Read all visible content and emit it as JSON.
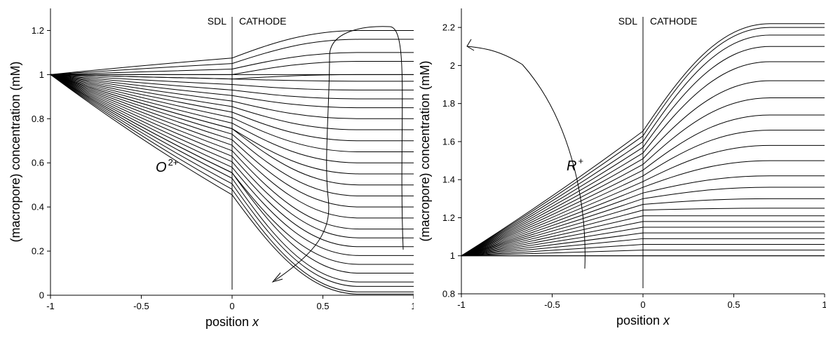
{
  "chart_data": [
    {
      "type": "line",
      "species": {
        "base": "O",
        "sup": "2+"
      },
      "xlabel": {
        "text": "position ",
        "var": "x"
      },
      "ylabel": "(macropore) concentration (mM)",
      "xlim": [
        -1,
        1
      ],
      "ylim": [
        0,
        1.3
      ],
      "xticks": [
        -1,
        -0.5,
        0,
        0.5,
        1
      ],
      "xtick_labels": [
        "-1",
        "-0.5",
        "0",
        "0.5",
        "1"
      ],
      "yticks": [
        0,
        0.2,
        0.4,
        0.6,
        0.8,
        1,
        1.2
      ],
      "ytick_labels": [
        "0",
        "0.2",
        "0.4",
        "0.6",
        "0.8",
        "1",
        "1.2"
      ],
      "regions": {
        "left": "SDL",
        "right": "CATHODE",
        "boundary": 0
      },
      "grid": false,
      "curves": {
        "interface_values": [
          1.075,
          1.05,
          1.025,
          1.0,
          0.98,
          0.955,
          0.93,
          0.905,
          0.88,
          0.855,
          0.83,
          0.805,
          0.78,
          0.755,
          0.73,
          0.705,
          0.68,
          0.655,
          0.63,
          0.605,
          0.58,
          0.555,
          0.53,
          0.505,
          0.48,
          0.455
        ],
        "end_values": [
          1.2,
          1.16,
          1.1,
          1.06,
          1.0,
          0.97,
          0.93,
          0.89,
          0.85,
          0.8,
          0.75,
          0.7,
          0.65,
          0.6,
          0.55,
          0.5,
          0.45,
          0.4,
          0.35,
          0.3,
          0.26,
          0.22,
          0.18,
          0.14,
          0.1,
          0.06,
          0.04,
          0.015,
          0.005
        ]
      },
      "arrow_direction": "down"
    },
    {
      "type": "line",
      "species": {
        "base": "R",
        "sup": "+"
      },
      "xlabel": {
        "text": "position ",
        "var": "x"
      },
      "ylabel": "(macropore) concentration (mM)",
      "xlim": [
        -1,
        1
      ],
      "ylim": [
        0.8,
        2.3
      ],
      "xticks": [
        -1,
        -0.5,
        0,
        0.5,
        1
      ],
      "xtick_labels": [
        "-1",
        "-0.5",
        "0",
        "0.5",
        "1"
      ],
      "yticks": [
        0.8,
        1,
        1.2,
        1.4,
        1.6,
        1.8,
        2,
        2.2
      ],
      "ytick_labels": [
        "0.8",
        "1",
        "1.2",
        "1.4",
        "1.6",
        "1.8",
        "2",
        "2.2"
      ],
      "regions": {
        "left": "SDL",
        "right": "CATHODE",
        "boundary": 0
      },
      "grid": false,
      "curves": {
        "interface_values": [
          1.0,
          1.03,
          1.06,
          1.09,
          1.12,
          1.15,
          1.18,
          1.21,
          1.24,
          1.27,
          1.3,
          1.33,
          1.36,
          1.39,
          1.42,
          1.45,
          1.48,
          1.51,
          1.54,
          1.57,
          1.6,
          1.63,
          1.655
        ],
        "end_values": [
          1.0,
          1.03,
          1.06,
          1.09,
          1.12,
          1.15,
          1.18,
          1.21,
          1.25,
          1.3,
          1.36,
          1.42,
          1.5,
          1.58,
          1.66,
          1.74,
          1.83,
          1.92,
          2.02,
          2.1,
          2.16,
          2.2,
          2.22
        ]
      },
      "arrow_direction": "up"
    }
  ]
}
